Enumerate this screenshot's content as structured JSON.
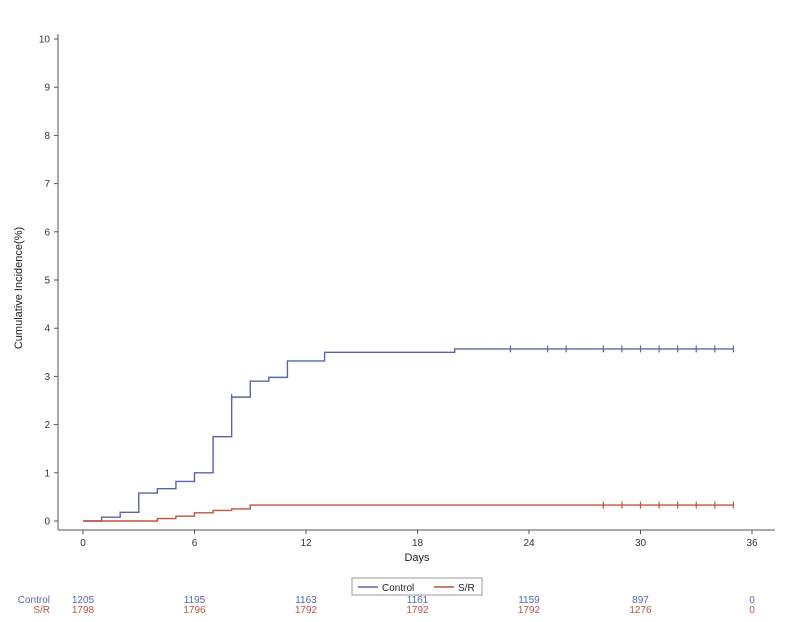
{
  "chart_data": {
    "type": "line",
    "xlabel": "Days",
    "ylabel": "Cumulative Incidence(%)",
    "xlim": [
      0,
      36
    ],
    "ylim": [
      0,
      10
    ],
    "x_ticks": [
      0,
      6,
      12,
      18,
      24,
      30,
      36
    ],
    "y_ticks": [
      0,
      1,
      2,
      3,
      4,
      5,
      6,
      7,
      8,
      9,
      10
    ],
    "grid": false,
    "legend_position": "bottom",
    "series": [
      {
        "name": "Control",
        "color": "#5b63b0",
        "step": true,
        "x": [
          0,
          1,
          2,
          3,
          4,
          5,
          6,
          7,
          8,
          9,
          10,
          11,
          13,
          20,
          35
        ],
        "y": [
          0,
          0.08,
          0.18,
          0.58,
          0.67,
          0.82,
          1.0,
          1.75,
          2.57,
          2.9,
          2.98,
          3.32,
          3.5,
          3.57,
          3.57
        ],
        "censor_x": [
          8,
          23,
          25,
          26,
          28,
          29,
          30,
          31,
          32,
          33,
          34,
          35
        ]
      },
      {
        "name": "S/R",
        "color": "#c0543e",
        "step": true,
        "x": [
          0,
          4,
          5,
          6,
          7,
          8,
          9,
          35
        ],
        "y": [
          0,
          0.05,
          0.1,
          0.17,
          0.22,
          0.25,
          0.33,
          0.33
        ],
        "censor_x": [
          28,
          29,
          30,
          31,
          32,
          33,
          34,
          35
        ]
      }
    ],
    "risk_table": {
      "days": [
        0,
        6,
        12,
        18,
        24,
        30,
        36
      ],
      "rows": [
        {
          "label": "Control",
          "color": "#5b63b0",
          "values": [
            "1205",
            "1195",
            "1163",
            "1161",
            "1159",
            "897",
            "0"
          ]
        },
        {
          "label": "S/R",
          "color": "#c0543e",
          "values": [
            "1798",
            "1796",
            "1792",
            "1792",
            "1792",
            "1276",
            "0"
          ]
        }
      ]
    }
  }
}
